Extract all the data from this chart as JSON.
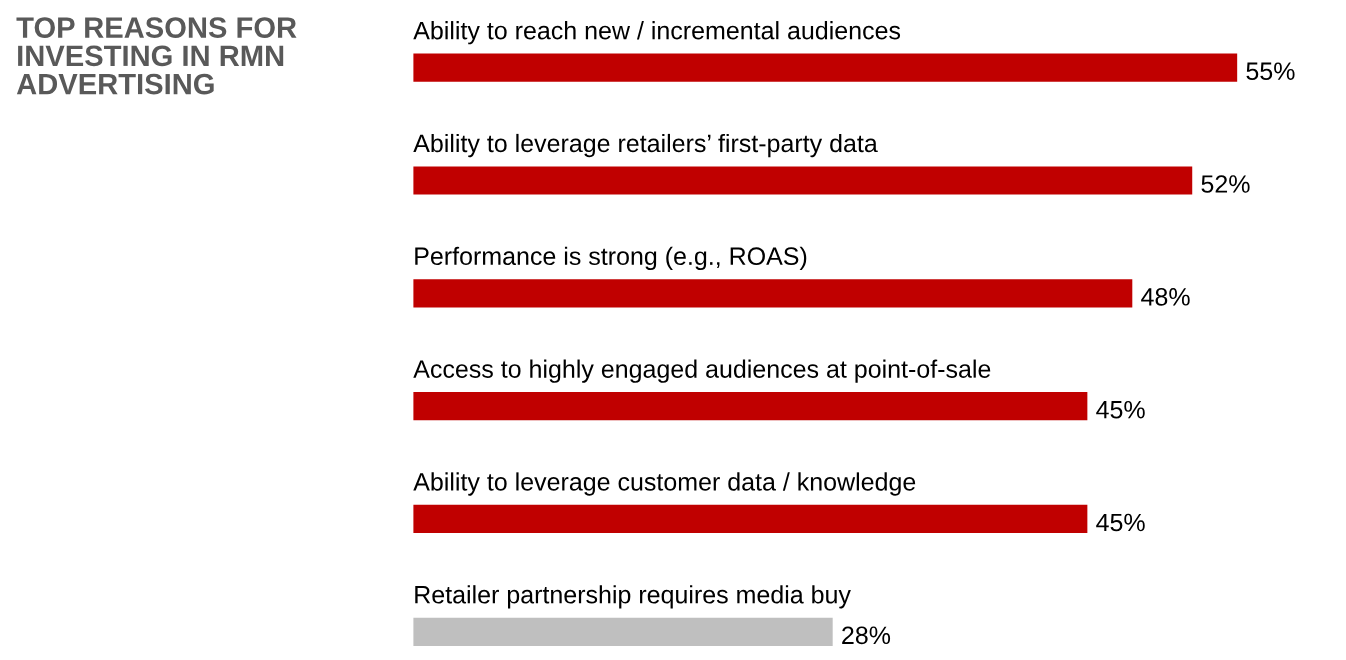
{
  "chart_data": {
    "type": "bar",
    "orientation": "horizontal",
    "title": "TOP REASONS FOR\nINVESTING IN RMN\nADVERTISING",
    "categories": [
      "Ability to reach new / incremental audiences",
      "Ability to leverage retailers’ first-party data",
      "Performance is strong (e.g., ROAS)",
      "Access to highly engaged audiences at point-of-sale",
      "Ability to leverage customer data / knowledge",
      "Retailer partnership requires media buy"
    ],
    "values": [
      55,
      52,
      48,
      45,
      45,
      28
    ],
    "colors": [
      "#c00000",
      "#c00000",
      "#c00000",
      "#c00000",
      "#c00000",
      "#bfbfbf"
    ],
    "value_labels": [
      "55%",
      "52%",
      "48%",
      "45%",
      "45%",
      "28%"
    ]
  }
}
